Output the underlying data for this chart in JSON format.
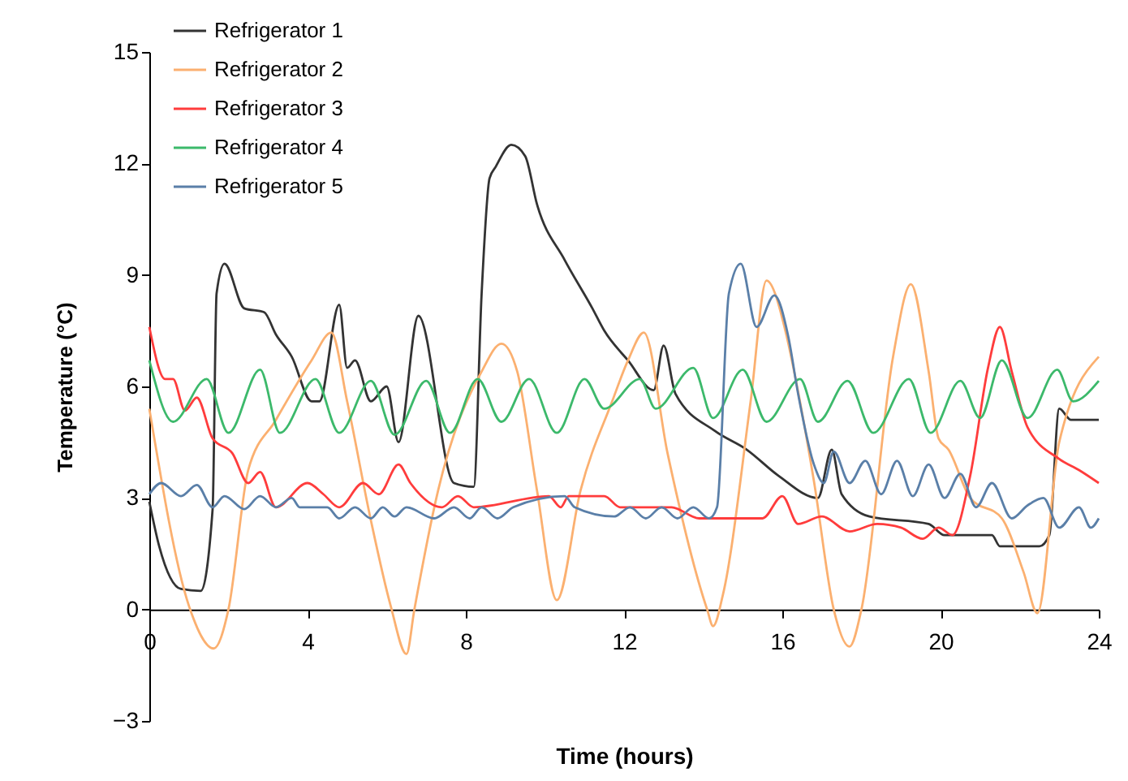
{
  "chart_data": {
    "type": "line",
    "xlabel": "Time (hours)",
    "ylabel": "Temperature (°C)",
    "xlim": [
      0,
      24
    ],
    "xticks": [
      0,
      4,
      8,
      12,
      16,
      20,
      24
    ],
    "ylim": [
      -3,
      15
    ],
    "yticks": [
      -3,
      0,
      3,
      6,
      9,
      12,
      15
    ],
    "grid": false,
    "legend": "top left",
    "marker": "none",
    "line_style": "solid",
    "series": [
      {
        "name": "Refrigerator 1",
        "color": "#333333",
        "x": [
          0,
          0.25,
          0.8,
          1.3,
          1.6,
          1.7,
          1.9,
          2.4,
          2.9,
          3.2,
          3.6,
          4.1,
          4.3,
          4.8,
          5.0,
          5.2,
          5.6,
          6.0,
          6.3,
          6.8,
          7.7,
          8.2,
          8.4,
          8.6,
          8.75,
          9.15,
          9.5,
          9.8,
          10.5,
          11.2,
          11.5,
          12.1,
          12.75,
          13.0,
          13.3,
          14.3,
          15.1,
          15.9,
          16.9,
          17.25,
          17.5,
          18.2,
          19.7,
          20.1,
          21.3,
          21.5,
          22.5,
          22.75,
          23.0,
          23.3,
          24
        ],
        "values": [
          2.9,
          1.7,
          0.55,
          0.5,
          2.7,
          8.5,
          9.3,
          8.1,
          8.0,
          7.4,
          6.8,
          5.6,
          5.6,
          8.2,
          6.5,
          6.7,
          5.6,
          6.0,
          4.5,
          7.9,
          3.4,
          3.3,
          8.5,
          11.6,
          11.9,
          12.5,
          12.2,
          10.9,
          9.4,
          8.1,
          7.5,
          6.7,
          5.9,
          7.1,
          5.8,
          4.8,
          4.3,
          3.6,
          3.0,
          4.3,
          3.1,
          2.5,
          2.3,
          2.0,
          2.0,
          1.7,
          1.7,
          2.0,
          5.4,
          5.1,
          5.1
        ]
      },
      {
        "name": "Refrigerator 2",
        "color": "#fbb070",
        "x": [
          0,
          1.0,
          1.63,
          2.0,
          2.5,
          3.2,
          4.1,
          4.6,
          5.0,
          5.6,
          6.1,
          6.5,
          6.7,
          7.3,
          8.4,
          8.9,
          9.3,
          9.8,
          10.3,
          10.9,
          11.7,
          12.1,
          12.5,
          13.1,
          14.1,
          14.25,
          14.5,
          15.2,
          15.6,
          16.1,
          16.3,
          16.8,
          17.3,
          17.7,
          18.0,
          18.8,
          19.25,
          19.7,
          19.95,
          20.2,
          20.75,
          21.55,
          22.1,
          22.45,
          23.0,
          24
        ],
        "values": [
          5.4,
          0.1,
          -1.05,
          0,
          3.75,
          5.1,
          6.7,
          7.45,
          5.6,
          2.4,
          0.1,
          -1.2,
          0,
          3.2,
          6.4,
          7.15,
          6.4,
          3.2,
          0.25,
          3.2,
          5.6,
          6.7,
          7.45,
          4.2,
          0,
          -0.45,
          0.4,
          5.6,
          8.85,
          7.4,
          6.4,
          3.45,
          0,
          -1.0,
          0,
          6.8,
          8.75,
          6.4,
          4.6,
          4.3,
          3.0,
          2.45,
          1.0,
          -0.1,
          4.5,
          6.8
        ]
      },
      {
        "name": "Refrigerator 3",
        "color": "#ff3c3c",
        "x": [
          0,
          0.4,
          0.6,
          0.9,
          1.2,
          1.6,
          2.1,
          2.5,
          2.8,
          3.2,
          4.0,
          4.4,
          4.8,
          5.4,
          5.8,
          6.3,
          6.6,
          7.4,
          7.8,
          8.2,
          10.1,
          10.4,
          10.6,
          11.5,
          11.9,
          13.2,
          13.9,
          15.5,
          16.0,
          16.4,
          17.0,
          17.7,
          18.4,
          19.0,
          19.55,
          19.95,
          20.3,
          20.75,
          21.2,
          21.5,
          21.8,
          22.2,
          23.0,
          23.5,
          24
        ],
        "values": [
          7.6,
          6.2,
          6.2,
          5.35,
          5.7,
          4.6,
          4.2,
          3.4,
          3.7,
          2.75,
          3.4,
          3.1,
          2.75,
          3.4,
          3.1,
          3.9,
          3.4,
          2.75,
          3.05,
          2.75,
          3.05,
          2.75,
          3.05,
          3.05,
          2.75,
          2.75,
          2.45,
          2.45,
          3.05,
          2.3,
          2.5,
          2.1,
          2.3,
          2.2,
          1.9,
          2.2,
          2.0,
          3.6,
          6.5,
          7.6,
          6.4,
          4.9,
          4.05,
          3.75,
          3.4
        ]
      },
      {
        "name": "Refrigerator 4",
        "color": "#3cb96b",
        "x": [
          0,
          0.6,
          1.45,
          2.0,
          2.8,
          3.3,
          4.2,
          4.8,
          5.6,
          6.2,
          7.0,
          7.6,
          8.3,
          8.9,
          9.6,
          10.3,
          11.0,
          11.5,
          12.4,
          12.8,
          13.75,
          14.25,
          15.0,
          15.6,
          16.45,
          16.9,
          17.65,
          18.3,
          19.2,
          19.75,
          20.5,
          21.0,
          21.55,
          22.2,
          22.95,
          23.35,
          24
        ],
        "values": [
          6.7,
          5.05,
          6.2,
          4.75,
          6.45,
          4.75,
          6.2,
          4.75,
          6.15,
          4.7,
          6.15,
          4.75,
          6.2,
          5.05,
          6.2,
          4.75,
          6.2,
          5.4,
          6.2,
          5.4,
          6.5,
          5.15,
          6.45,
          5.05,
          6.2,
          5.05,
          6.15,
          4.75,
          6.2,
          4.75,
          6.15,
          5.15,
          6.7,
          5.15,
          6.45,
          5.6,
          6.15
        ]
      },
      {
        "name": "Refrigerator 5",
        "color": "#5a7fa8",
        "x": [
          0,
          0.3,
          0.8,
          1.2,
          1.6,
          1.9,
          2.4,
          2.8,
          3.2,
          3.6,
          3.8,
          4.5,
          4.8,
          5.2,
          5.6,
          5.9,
          6.2,
          6.5,
          7.2,
          7.7,
          8.1,
          8.4,
          8.8,
          9.2,
          10.5,
          10.75,
          11.75,
          12.15,
          12.55,
          12.95,
          13.35,
          13.75,
          14.15,
          14.35,
          14.65,
          14.95,
          15.35,
          15.8,
          16.15,
          16.4,
          16.8,
          17.05,
          17.3,
          17.7,
          18.1,
          18.5,
          18.9,
          19.3,
          19.7,
          20.1,
          20.5,
          20.9,
          21.3,
          21.8,
          22.2,
          22.6,
          23.0,
          23.5,
          23.8,
          24
        ],
        "values": [
          3.1,
          3.4,
          3.05,
          3.35,
          2.75,
          3.05,
          2.7,
          3.05,
          2.75,
          3.0,
          2.75,
          2.75,
          2.45,
          2.75,
          2.45,
          2.75,
          2.5,
          2.75,
          2.45,
          2.75,
          2.45,
          2.75,
          2.45,
          2.75,
          3.05,
          2.75,
          2.5,
          2.75,
          2.45,
          2.75,
          2.45,
          2.75,
          2.45,
          2.75,
          8.5,
          9.3,
          7.6,
          8.45,
          7.35,
          5.8,
          3.9,
          3.4,
          4.25,
          3.4,
          4.0,
          3.1,
          4.0,
          3.05,
          3.9,
          3.0,
          3.65,
          2.75,
          3.4,
          2.45,
          2.8,
          3.0,
          2.2,
          2.75,
          2.2,
          2.45
        ]
      }
    ]
  }
}
